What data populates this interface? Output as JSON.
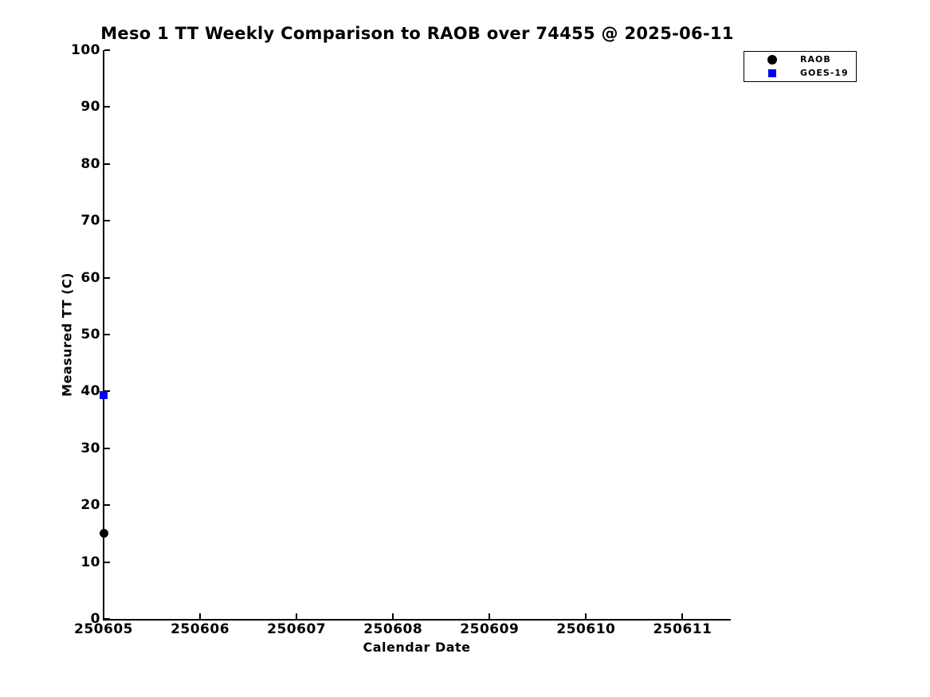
{
  "chart_data": {
    "type": "scatter",
    "title": "Meso 1 TT Weekly Comparison to RAOB over 74455 @ 2025-06-11",
    "xlabel": "Calendar Date",
    "ylabel": "Measured TT (C)",
    "xlim": [
      250605,
      250611.5
    ],
    "ylim": [
      0,
      100
    ],
    "xticks": [
      250605,
      250606,
      250607,
      250608,
      250609,
      250610,
      250611
    ],
    "yticks": [
      0,
      10,
      20,
      30,
      40,
      50,
      60,
      70,
      80,
      90,
      100
    ],
    "grid": false,
    "background": "#ffffff",
    "text_color": "#000000",
    "legend_position": "outside-top-right",
    "series": [
      {
        "name": "RAOB",
        "marker": "circle",
        "color": "#000000",
        "points": [
          {
            "x": 250605,
            "y": 15.1
          }
        ]
      },
      {
        "name": "GOES-19",
        "marker": "square",
        "color": "#0000ff",
        "points": [
          {
            "x": 250605,
            "y": 39.4
          }
        ]
      }
    ]
  }
}
